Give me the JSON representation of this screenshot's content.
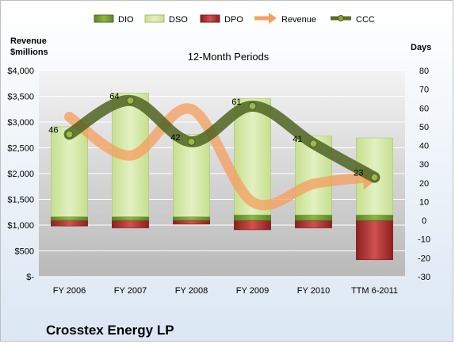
{
  "chart_data": {
    "type": "bar",
    "title": "12-Month Periods",
    "company": "Crosstex Energy LP",
    "left_axis": {
      "title_line1": "Revenue",
      "title_line2": "$millions",
      "ylim": [
        0,
        4000
      ],
      "ticks": [
        0,
        500,
        1000,
        1500,
        2000,
        2500,
        3000,
        3500,
        4000
      ],
      "tick_labels": [
        "$-",
        "$500",
        "$1,000",
        "$1,500",
        "$2,000",
        "$2,500",
        "$3,000",
        "$3,500",
        "$4,000"
      ]
    },
    "right_axis": {
      "title": "Days",
      "ylim": [
        -30,
        80
      ],
      "ticks": [
        -30,
        -20,
        -10,
        0,
        10,
        20,
        30,
        40,
        50,
        60,
        70,
        80
      ],
      "tick_labels": [
        "-30",
        "-20",
        "-10",
        "0",
        "10",
        "20",
        "30",
        "40",
        "50",
        "60",
        "70",
        "80"
      ]
    },
    "categories": [
      "FY 2006",
      "FY 2007",
      "FY 2008",
      "FY 2009",
      "FY 2010",
      "TTM 6-2011"
    ],
    "legend": [
      "DIO",
      "DSO",
      "DPO",
      "Revenue",
      "CCC"
    ],
    "legend_position": "top",
    "series": [
      {
        "name": "DIO",
        "axis": "right",
        "kind": "stacked-bar",
        "color": "#6e9a2c",
        "values": [
          2,
          2,
          2,
          3,
          3,
          3
        ]
      },
      {
        "name": "DSO",
        "axis": "right",
        "kind": "stacked-bar",
        "color": "#d2e7a6",
        "values": [
          48,
          66,
          44,
          62,
          42,
          41
        ]
      },
      {
        "name": "DPO",
        "axis": "right",
        "kind": "negative-bar",
        "color": "#b02d2d",
        "values": [
          -3,
          -4,
          -2,
          -5,
          -4,
          -21
        ]
      },
      {
        "name": "Revenue",
        "axis": "left",
        "kind": "line",
        "color": "#f3a060",
        "values": [
          3100,
          2350,
          3250,
          1450,
          1800,
          1920
        ]
      },
      {
        "name": "CCC",
        "axis": "right",
        "kind": "line",
        "color": "#5a6e2a",
        "values": [
          46,
          64,
          42,
          61,
          41,
          23
        ]
      }
    ],
    "data_labels": [
      "46",
      "64",
      "42",
      "61",
      "41",
      "23"
    ]
  }
}
